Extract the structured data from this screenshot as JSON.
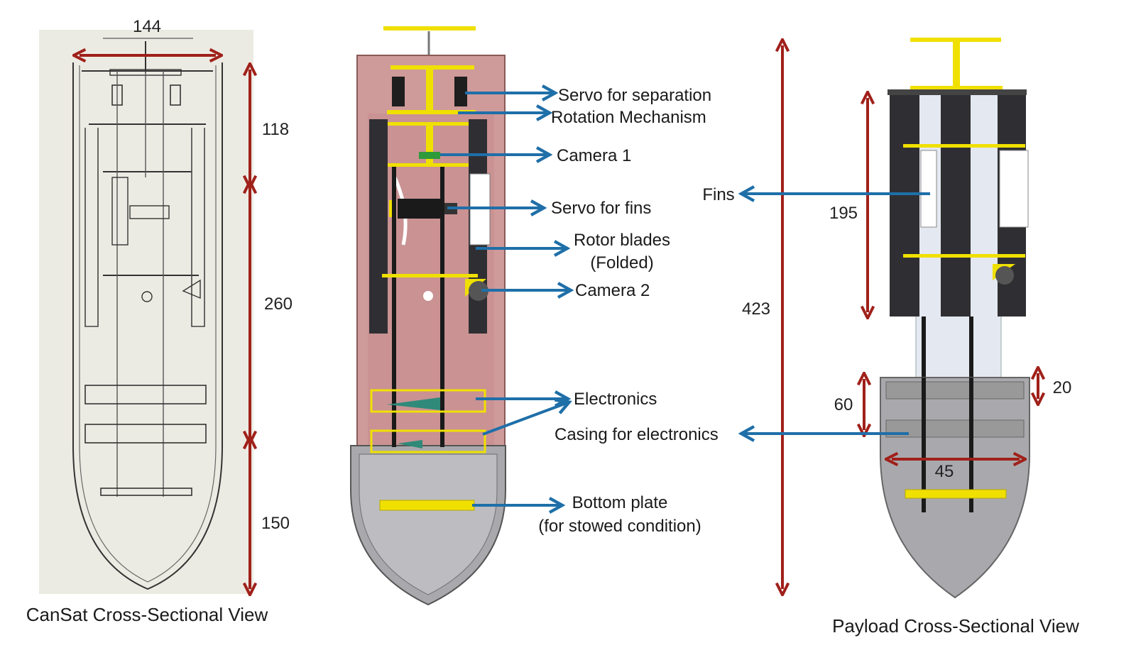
{
  "captions": {
    "cansat": "CanSat Cross-Sectional View",
    "payload": "Payload Cross-Sectional View"
  },
  "dimensions": {
    "cansat_width": "144",
    "cansat_top": "118",
    "cansat_mid": "260",
    "cansat_bottom": "150",
    "payload_total": "423",
    "fins_length": "195",
    "casing_height": "60",
    "casing_wall": "20",
    "casing_width": "45"
  },
  "labels": {
    "servo_separation": "Servo for separation",
    "rotation": "Rotation Mechanism",
    "camera1": "Camera 1",
    "servo_fins": "Servo for fins",
    "rotor_line1": "Rotor blades",
    "rotor_line2": "(Folded)",
    "camera2": "Camera 2",
    "electronics": "Electronics",
    "casing": "Casing for electronics",
    "bottom_line1": "Bottom plate",
    "bottom_line2": "(for stowed condition)",
    "fins": "Fins"
  },
  "colors": {
    "dimension_arrow": "#a0201a",
    "callout_arrow": "#1f6fa8",
    "mechanism_yellow": "#f0e000",
    "body_pink": "#cf9a9a",
    "nose_grey": "#a9a9ad",
    "fin_dark": "#2f2f33"
  }
}
